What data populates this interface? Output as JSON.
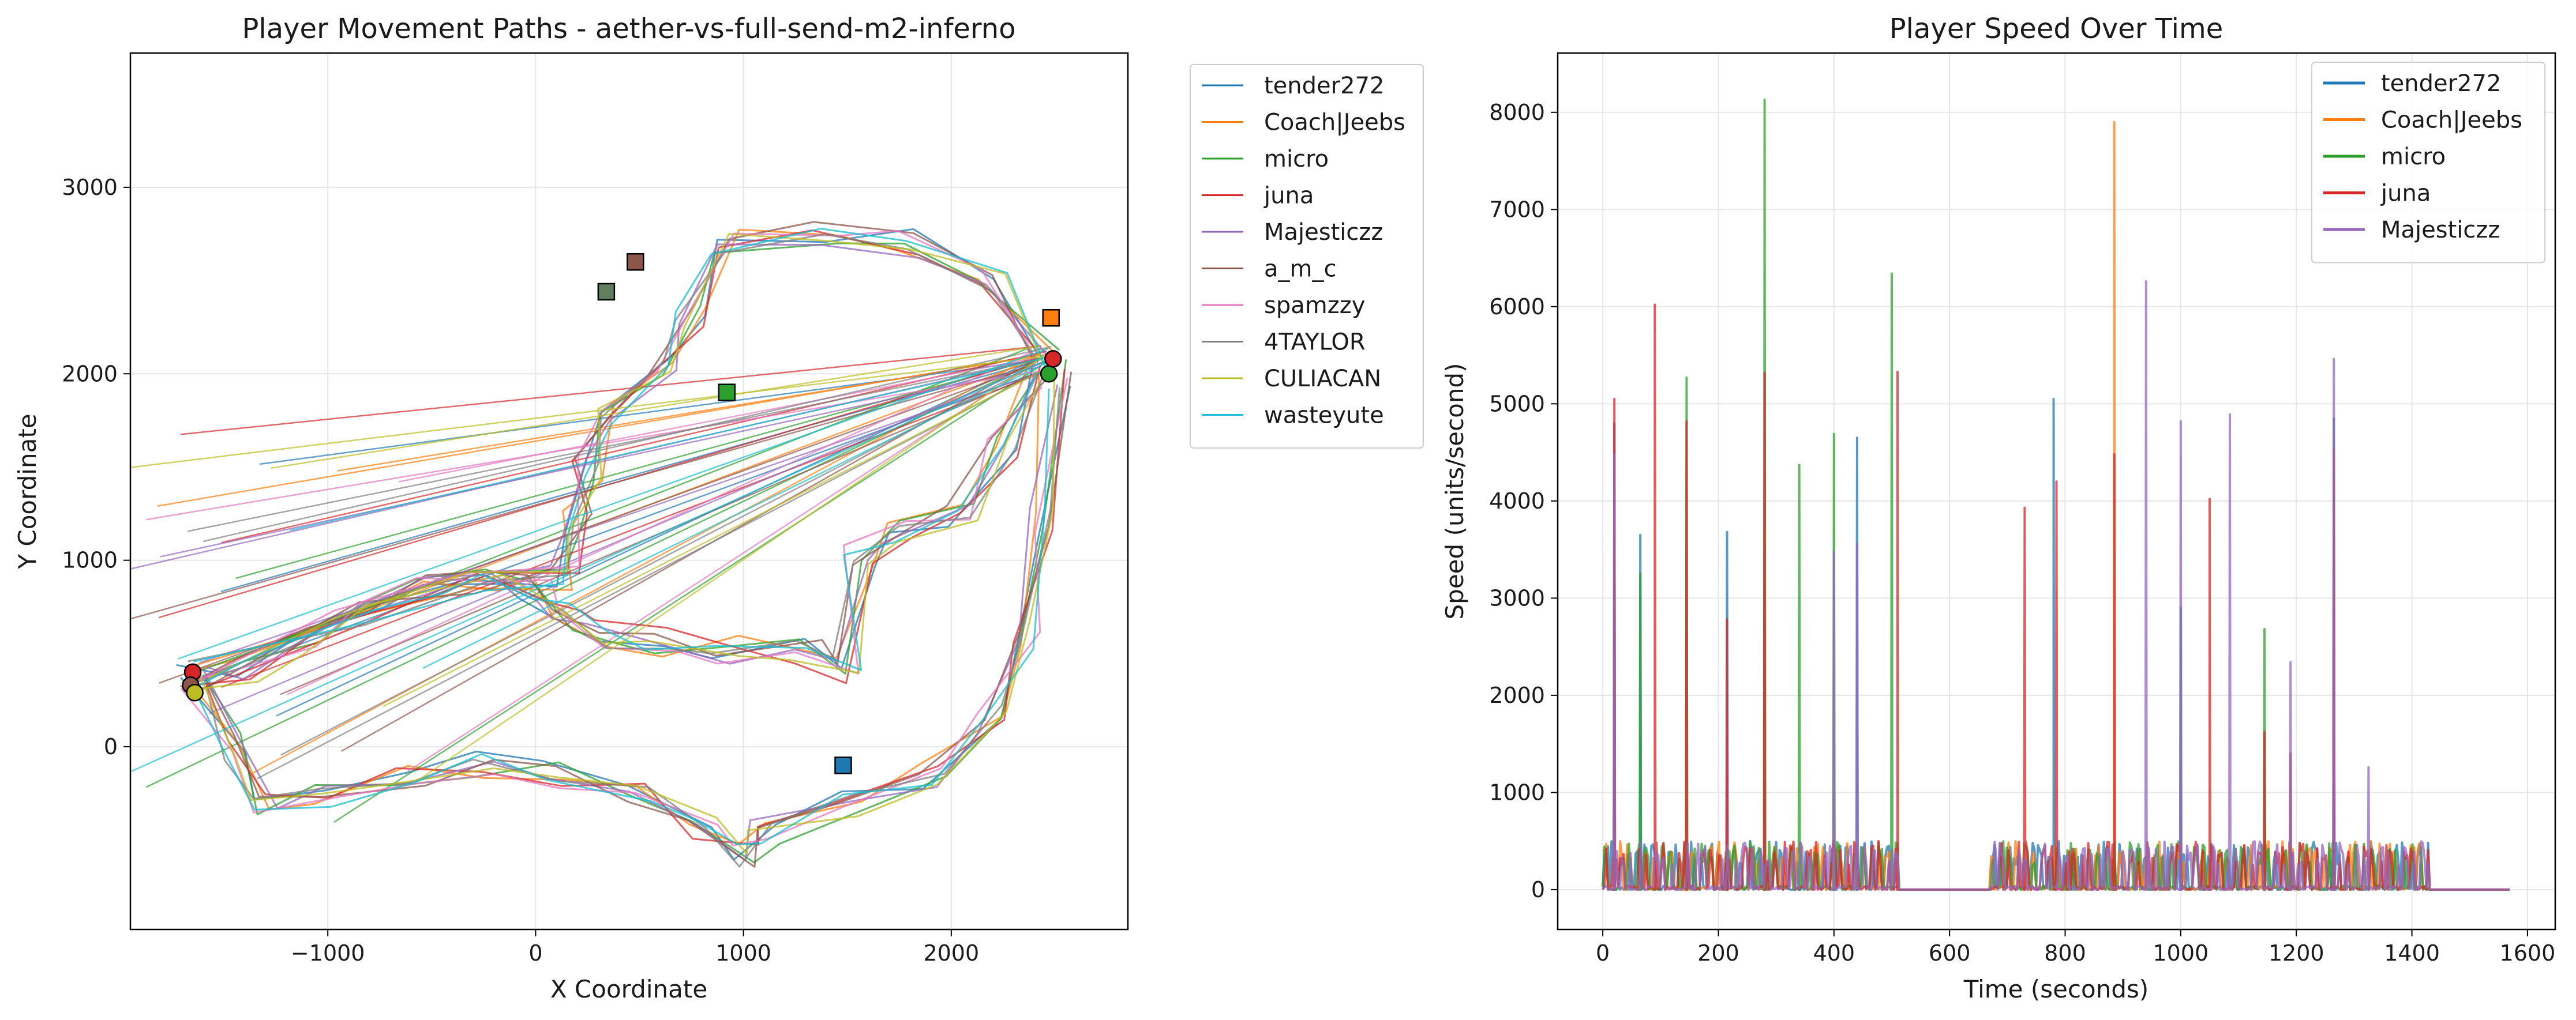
{
  "chart_data": [
    {
      "type": "line",
      "title": "Player Movement Paths - aether-vs-full-send-m2-inferno",
      "xlabel": "X Coordinate",
      "ylabel": "Y Coordinate",
      "xlim": [
        -1950,
        2850
      ],
      "ylim": [
        -980,
        3720
      ],
      "xticks": [
        "−1000",
        "0",
        "1000",
        "2000"
      ],
      "xtick_values": [
        -1000,
        0,
        1000,
        2000
      ],
      "yticks": [
        "0",
        "1000",
        "2000",
        "3000"
      ],
      "ytick_values": [
        0,
        1000,
        2000,
        3000
      ],
      "grid": true,
      "legend_position": "outside-right",
      "series": [
        {
          "name": "tender272",
          "color": "#1f77b4"
        },
        {
          "name": "Coach|Jeebs",
          "color": "#ff7f0e"
        },
        {
          "name": "micro",
          "color": "#2ca02c"
        },
        {
          "name": "juna",
          "color": "#d62728"
        },
        {
          "name": "Majesticzz",
          "color": "#9467bd"
        },
        {
          "name": "a_m_c",
          "color": "#8c564b"
        },
        {
          "name": "spamzzy",
          "color": "#e377c2"
        },
        {
          "name": "4TAYLOR",
          "color": "#7f7f7f"
        },
        {
          "name": "CULIACAN",
          "color": "#bcbd22"
        },
        {
          "name": "wasteyute",
          "color": "#17becf"
        }
      ],
      "route_waypoints": [
        [
          -1650,
          380
        ],
        [
          -1400,
          420
        ],
        [
          -1100,
          560
        ],
        [
          -800,
          720
        ],
        [
          -500,
          840
        ],
        [
          -200,
          880
        ],
        [
          0,
          840
        ],
        [
          150,
          700
        ],
        [
          320,
          600
        ],
        [
          600,
          560
        ],
        [
          900,
          520
        ],
        [
          1300,
          500
        ],
        [
          1500,
          420
        ],
        [
          1560,
          1000
        ],
        [
          1750,
          1150
        ],
        [
          2050,
          1250
        ],
        [
          2250,
          1600
        ],
        [
          2450,
          2000
        ]
      ],
      "route_upper": [
        [
          -1650,
          380
        ],
        [
          -900,
          700
        ],
        [
          -300,
          870
        ],
        [
          150,
          900
        ],
        [
          210,
          1200
        ],
        [
          250,
          1500
        ],
        [
          300,
          1800
        ],
        [
          600,
          2050
        ],
        [
          750,
          2300
        ],
        [
          900,
          2700
        ],
        [
          1400,
          2760
        ],
        [
          1800,
          2700
        ],
        [
          2200,
          2500
        ],
        [
          2450,
          2100
        ]
      ],
      "route_lower": [
        [
          -1650,
          380
        ],
        [
          -1450,
          0
        ],
        [
          -1300,
          -300
        ],
        [
          -1000,
          -250
        ],
        [
          -600,
          -180
        ],
        [
          -250,
          -100
        ],
        [
          100,
          -150
        ],
        [
          500,
          -250
        ],
        [
          800,
          -450
        ],
        [
          1000,
          -600
        ],
        [
          1100,
          -450
        ],
        [
          1500,
          -300
        ],
        [
          1900,
          -150
        ],
        [
          2200,
          150
        ],
        [
          2350,
          600
        ],
        [
          2450,
          1200
        ],
        [
          2500,
          2000
        ]
      ]
    },
    {
      "type": "line",
      "title": "Player Speed Over Time",
      "xlabel": "Time (seconds)",
      "ylabel": "Speed (units/second)",
      "xlim": [
        -78,
        1648
      ],
      "ylim": [
        -410,
        8610
      ],
      "xticks": [
        "0",
        "200",
        "400",
        "600",
        "800",
        "1000",
        "1200",
        "1400",
        "1600"
      ],
      "xtick_values": [
        0,
        200,
        400,
        600,
        800,
        1000,
        1200,
        1400,
        1600
      ],
      "yticks": [
        "0",
        "1000",
        "2000",
        "3000",
        "4000",
        "5000",
        "6000",
        "7000",
        "8000"
      ],
      "ytick_values": [
        0,
        1000,
        2000,
        3000,
        4000,
        5000,
        6000,
        7000,
        8000
      ],
      "grid": true,
      "legend_position": "top-right",
      "series": [
        {
          "name": "tender272",
          "color": "#1f77b4",
          "spikes": [
            [
              20,
              4800
            ],
            [
              65,
              3650
            ],
            [
              215,
              3680
            ],
            [
              440,
              4650
            ],
            [
              780,
              5050
            ],
            [
              1000,
              2900
            ],
            [
              1265,
              4850
            ]
          ]
        },
        {
          "name": "Coach|Jeebs",
          "color": "#ff7f0e",
          "spikes": [
            [
              885,
              7900
            ]
          ]
        },
        {
          "name": "micro",
          "color": "#2ca02c",
          "spikes": [
            [
              65,
              3250
            ],
            [
              145,
              5270
            ],
            [
              280,
              8130
            ],
            [
              340,
              4370
            ],
            [
              400,
              4690
            ],
            [
              500,
              6340
            ],
            [
              1145,
              2680
            ]
          ]
        },
        {
          "name": "juna",
          "color": "#d62728",
          "spikes": [
            [
              20,
              5050
            ],
            [
              90,
              6020
            ],
            [
              145,
              4820
            ],
            [
              215,
              2780
            ],
            [
              280,
              5320
            ],
            [
              510,
              5330
            ],
            [
              730,
              3930
            ],
            [
              785,
              4200
            ],
            [
              885,
              4480
            ],
            [
              1050,
              4020
            ],
            [
              1145,
              1620
            ],
            [
              1190,
              1400
            ],
            [
              1265,
              4530
            ]
          ]
        },
        {
          "name": "Majesticzz",
          "color": "#9467bd",
          "spikes": [
            [
              20,
              4480
            ],
            [
              400,
              3480
            ],
            [
              440,
              3560
            ],
            [
              940,
              6260
            ],
            [
              1000,
              4820
            ],
            [
              1085,
              4890
            ],
            [
              1190,
              2340
            ],
            [
              1265,
              5460
            ],
            [
              1325,
              1260
            ]
          ]
        }
      ],
      "activity_windows": [
        [
          0,
          510
        ],
        [
          670,
          1430
        ]
      ],
      "active_duration": 1570
    }
  ]
}
